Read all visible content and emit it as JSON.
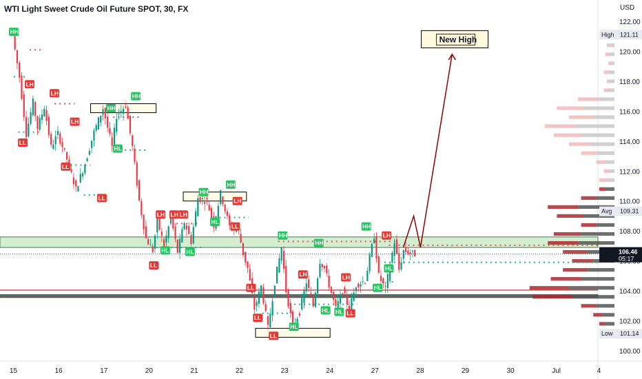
{
  "chart_data": {
    "type": "candlestick",
    "title": "WTI Light Sweet Crude Oil Future SPOT, 30, FX",
    "currency": "USD",
    "y_ticks": [
      100,
      102,
      104,
      106,
      108,
      110,
      112,
      114,
      116,
      118,
      120,
      122
    ],
    "y_tick_labels": [
      "100.00",
      "102.00",
      "104.00",
      "106.00",
      "108.00",
      "110.00",
      "112.00",
      "114.00",
      "116.00",
      "118.00",
      "120.00",
      "122.00"
    ],
    "ylim": [
      99.3,
      122.9
    ],
    "x_labels": [
      "15",
      "16",
      "17",
      "20",
      "21",
      "22",
      "23",
      "24",
      "27",
      "28",
      "29",
      "30",
      "Jul",
      "4"
    ],
    "price_path": [
      {
        "x": 0,
        "y": 121.0
      },
      {
        "x": 0.15,
        "y": 118.3
      },
      {
        "x": 0.3,
        "y": 114.5
      },
      {
        "x": 0.45,
        "y": 116.6
      },
      {
        "x": 0.55,
        "y": 114.9
      },
      {
        "x": 0.7,
        "y": 116.3
      },
      {
        "x": 0.85,
        "y": 113.6
      },
      {
        "x": 1.0,
        "y": 114.5
      },
      {
        "x": 1.2,
        "y": 112.8
      },
      {
        "x": 1.4,
        "y": 110.8
      },
      {
        "x": 1.6,
        "y": 112.5
      },
      {
        "x": 1.8,
        "y": 114.6
      },
      {
        "x": 2.0,
        "y": 116.2
      },
      {
        "x": 2.2,
        "y": 113.6
      },
      {
        "x": 2.3,
        "y": 115.7
      },
      {
        "x": 2.5,
        "y": 116.4
      },
      {
        "x": 2.65,
        "y": 113.6
      },
      {
        "x": 2.8,
        "y": 110.0
      },
      {
        "x": 2.95,
        "y": 107.5
      },
      {
        "x": 3.1,
        "y": 106.7
      },
      {
        "x": 3.2,
        "y": 108.7
      },
      {
        "x": 3.35,
        "y": 107.0
      },
      {
        "x": 3.5,
        "y": 108.9
      },
      {
        "x": 3.65,
        "y": 106.6
      },
      {
        "x": 3.8,
        "y": 108.6
      },
      {
        "x": 3.95,
        "y": 107.3
      },
      {
        "x": 4.1,
        "y": 110.2
      },
      {
        "x": 4.3,
        "y": 110.0
      },
      {
        "x": 4.45,
        "y": 108.4
      },
      {
        "x": 4.6,
        "y": 110.5
      },
      {
        "x": 4.8,
        "y": 108.3
      },
      {
        "x": 5.0,
        "y": 108.0
      },
      {
        "x": 5.1,
        "y": 106.5
      },
      {
        "x": 5.2,
        "y": 105.5
      },
      {
        "x": 5.35,
        "y": 102.8
      },
      {
        "x": 5.5,
        "y": 104.3
      },
      {
        "x": 5.65,
        "y": 101.5
      },
      {
        "x": 5.8,
        "y": 104.6
      },
      {
        "x": 5.95,
        "y": 106.9
      },
      {
        "x": 6.05,
        "y": 104.0
      },
      {
        "x": 6.2,
        "y": 101.6
      },
      {
        "x": 6.35,
        "y": 102.6
      },
      {
        "x": 6.5,
        "y": 104.6
      },
      {
        "x": 6.65,
        "y": 103.0
      },
      {
        "x": 6.8,
        "y": 106.0
      },
      {
        "x": 6.9,
        "y": 105.5
      },
      {
        "x": 7.0,
        "y": 104.4
      },
      {
        "x": 7.15,
        "y": 102.8
      },
      {
        "x": 7.3,
        "y": 104.0
      },
      {
        "x": 7.45,
        "y": 102.8
      },
      {
        "x": 7.6,
        "y": 104.4
      },
      {
        "x": 7.8,
        "y": 104.7
      },
      {
        "x": 8.0,
        "y": 107.7
      },
      {
        "x": 8.1,
        "y": 105.0
      },
      {
        "x": 8.25,
        "y": 104.1
      },
      {
        "x": 8.45,
        "y": 107.3
      },
      {
        "x": 8.55,
        "y": 105.4
      },
      {
        "x": 8.65,
        "y": 106.7
      },
      {
        "x": 8.8,
        "y": 106.5
      },
      {
        "x": 8.9,
        "y": 106.46
      }
    ],
    "badges": [
      {
        "label": "HH",
        "type": "high",
        "x": 0.0,
        "y": 121.3
      },
      {
        "label": "LH",
        "type": "lower",
        "x": 0.35,
        "y": 117.8
      },
      {
        "label": "LH",
        "type": "lower",
        "x": 0.9,
        "y": 117.2
      },
      {
        "label": "LH",
        "type": "lower",
        "x": 1.35,
        "y": 115.3
      },
      {
        "label": "LL",
        "type": "lower",
        "x": 0.2,
        "y": 113.9
      },
      {
        "label": "LL",
        "type": "lower",
        "x": 1.15,
        "y": 112.3
      },
      {
        "label": "LL",
        "type": "lower",
        "x": 1.95,
        "y": 110.2
      },
      {
        "label": "HH",
        "type": "high",
        "x": 2.7,
        "y": 117.0
      },
      {
        "label": "HH",
        "type": "high",
        "x": 2.15,
        "y": 116.2
      },
      {
        "label": "HL",
        "type": "high",
        "x": 2.3,
        "y": 113.5
      },
      {
        "label": "LH",
        "type": "lower",
        "x": 3.25,
        "y": 109.1
      },
      {
        "label": "LH",
        "type": "lower",
        "x": 3.55,
        "y": 109.1
      },
      {
        "label": "LH",
        "type": "lower",
        "x": 3.75,
        "y": 109.1
      },
      {
        "label": "LL",
        "type": "lower",
        "x": 3.1,
        "y": 105.7
      },
      {
        "label": "HL",
        "type": "high",
        "x": 3.35,
        "y": 106.7
      },
      {
        "label": "HL",
        "type": "high",
        "x": 3.9,
        "y": 106.6
      },
      {
        "label": "HH",
        "type": "high",
        "x": 4.2,
        "y": 110.6
      },
      {
        "label": "HH",
        "type": "high",
        "x": 4.8,
        "y": 111.1
      },
      {
        "label": "HL",
        "type": "high",
        "x": 4.45,
        "y": 108.6
      },
      {
        "label": "LH",
        "type": "lower",
        "x": 4.95,
        "y": 110.0
      },
      {
        "label": "LL",
        "type": "lower",
        "x": 4.9,
        "y": 108.3
      },
      {
        "label": "LL",
        "type": "lower",
        "x": 5.25,
        "y": 104.2
      },
      {
        "label": "LL",
        "type": "lower",
        "x": 5.4,
        "y": 102.2
      },
      {
        "label": "LL",
        "type": "lower",
        "x": 5.75,
        "y": 101.0
      },
      {
        "label": "HH",
        "type": "high",
        "x": 5.95,
        "y": 107.7
      },
      {
        "label": "LH",
        "type": "lower",
        "x": 6.4,
        "y": 105.1
      },
      {
        "label": "HL",
        "type": "high",
        "x": 6.2,
        "y": 101.6
      },
      {
        "label": "HH",
        "type": "high",
        "x": 6.75,
        "y": 107.2
      },
      {
        "label": "HL",
        "type": "high",
        "x": 6.9,
        "y": 102.7
      },
      {
        "label": "HL",
        "type": "high",
        "x": 7.2,
        "y": 102.6
      },
      {
        "label": "LH",
        "type": "lower",
        "x": 7.35,
        "y": 104.9
      },
      {
        "label": "LL",
        "type": "lower",
        "x": 7.45,
        "y": 102.5
      },
      {
        "label": "HH",
        "type": "high",
        "x": 7.8,
        "y": 108.3
      },
      {
        "label": "LH",
        "type": "lower",
        "x": 8.25,
        "y": 107.7
      },
      {
        "label": "HL",
        "type": "high",
        "x": 8.05,
        "y": 104.2
      },
      {
        "label": "HL",
        "type": "high",
        "x": 8.3,
        "y": 105.5
      }
    ],
    "zones": [
      {
        "name": "resistance-zone",
        "y_low": 106.9,
        "y_high": 107.6,
        "color": "#b7e3b4"
      },
      {
        "name": "support-line-1",
        "y_low": 104.05,
        "y_high": 104.05,
        "color": "#d32f2f"
      },
      {
        "name": "support-line-2",
        "y_low": 103.55,
        "y_high": 103.75,
        "color": "#000000"
      }
    ],
    "boxes": [
      {
        "x0": 1.7,
        "x1": 3.15,
        "y_low": 115.9,
        "y_high": 116.5
      },
      {
        "x0": 3.75,
        "x1": 5.15,
        "y_low": 110.0,
        "y_high": 110.6
      },
      {
        "x0": 5.35,
        "x1": 7.0,
        "y_low": 100.9,
        "y_high": 101.5
      }
    ],
    "projection": [
      {
        "x": 8.62,
        "y": 106.9
      },
      {
        "x": 8.85,
        "y": 109.0
      },
      {
        "x": 9.0,
        "y": 106.9
      },
      {
        "x": 9.7,
        "y": 119.8
      }
    ],
    "annotation": {
      "text": "New High",
      "x": 9.75,
      "y": 120.6
    },
    "current_price": "106.46",
    "countdown": "05:17",
    "high_label": "High",
    "high_value": "121.11",
    "avg_label": "Avg",
    "avg_value": "109.31",
    "low_label": "Low",
    "low_value": "101.14",
    "volume_profile": [
      {
        "price": 121.0,
        "up": 2,
        "down": 1
      },
      {
        "price": 120.4,
        "up": 3,
        "down": 2
      },
      {
        "price": 119.8,
        "up": 3,
        "down": 3
      },
      {
        "price": 119.2,
        "up": 2,
        "down": 2
      },
      {
        "price": 118.6,
        "up": 4,
        "down": 3
      },
      {
        "price": 118.0,
        "up": 3,
        "down": 2
      },
      {
        "price": 117.4,
        "up": 4,
        "down": 3
      },
      {
        "price": 116.8,
        "up": 12,
        "down": 12
      },
      {
        "price": 116.2,
        "up": 20,
        "down": 18
      },
      {
        "price": 115.6,
        "up": 14,
        "down": 16
      },
      {
        "price": 115.0,
        "up": 26,
        "down": 20
      },
      {
        "price": 114.4,
        "up": 22,
        "down": 18
      },
      {
        "price": 113.8,
        "up": 16,
        "down": 14
      },
      {
        "price": 113.2,
        "up": 12,
        "down": 10
      },
      {
        "price": 112.6,
        "up": 6,
        "down": 6
      },
      {
        "price": 112.0,
        "up": 4,
        "down": 3
      },
      {
        "price": 111.4,
        "up": 5,
        "down": 5
      },
      {
        "price": 110.8,
        "up": 6,
        "down": 4
      },
      {
        "price": 110.2,
        "up": 12,
        "down": 10
      },
      {
        "price": 109.6,
        "up": 24,
        "down": 20
      },
      {
        "price": 109.0,
        "up": 20,
        "down": 18
      },
      {
        "price": 108.4,
        "up": 12,
        "down": 10
      },
      {
        "price": 107.8,
        "up": 22,
        "down": 18
      },
      {
        "price": 107.2,
        "up": 24,
        "down": 20
      },
      {
        "price": 106.6,
        "up": 18,
        "down": 16
      },
      {
        "price": 106.0,
        "up": 14,
        "down": 14
      },
      {
        "price": 105.4,
        "up": 18,
        "down": 16
      },
      {
        "price": 104.8,
        "up": 22,
        "down": 20
      },
      {
        "price": 104.2,
        "up": 30,
        "down": 26
      },
      {
        "price": 103.6,
        "up": 28,
        "down": 26
      },
      {
        "price": 103.0,
        "up": 12,
        "down": 10
      },
      {
        "price": 102.4,
        "up": 8,
        "down": 6
      },
      {
        "price": 101.8,
        "up": 6,
        "down": 4
      },
      {
        "price": 101.2,
        "up": 3,
        "down": 2
      }
    ]
  }
}
